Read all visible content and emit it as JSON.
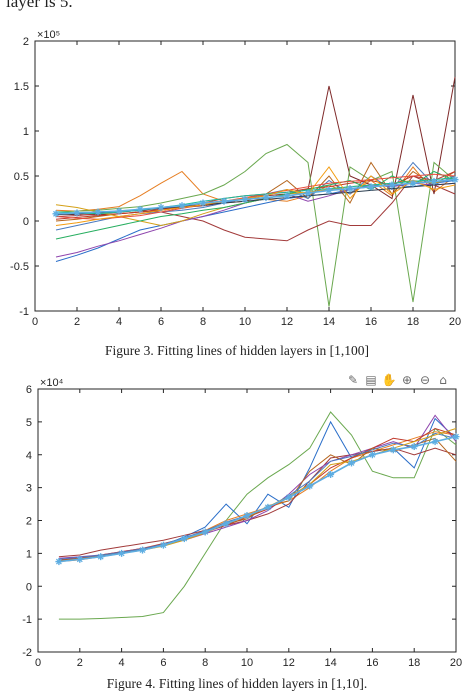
{
  "page": {
    "top_text": "layer is 5.",
    "figure3_caption": "Figure 3.   Fitting lines of hidden layers in [1,100]",
    "figure4_caption": "Figure 4.   Fitting lines of hidden layers in [1,10]."
  },
  "chart_data": [
    {
      "type": "line",
      "title": "",
      "xlabel": "",
      "ylabel": "",
      "exponent_label": "×10⁵",
      "xlim": [
        0,
        20
      ],
      "ylim": [
        -1,
        2
      ],
      "xticks": [
        0,
        2,
        4,
        6,
        8,
        10,
        12,
        14,
        16,
        18,
        20
      ],
      "yticks": [
        -1,
        -0.5,
        0,
        0.5,
        1,
        1.5,
        2
      ],
      "ytick_labels": [
        "-1",
        "-0.5",
        "0",
        "0.5",
        "1",
        "1.5",
        "2"
      ],
      "x": [
        1,
        2,
        3,
        4,
        5,
        6,
        7,
        8,
        9,
        10,
        11,
        12,
        13,
        14,
        15,
        16,
        17,
        18,
        19,
        20
      ],
      "series": [
        {
          "color": "#e67e22",
          "values": [
            0.12,
            0.11,
            0.13,
            0.16,
            0.28,
            0.42,
            0.55,
            0.3,
            0.22,
            0.25,
            0.24,
            0.22,
            0.28,
            0.4,
            0.3,
            0.45,
            0.28,
            0.6,
            0.32,
            0.5
          ]
        },
        {
          "color": "#7f2a2a",
          "values": [
            0.08,
            0.07,
            0.07,
            0.08,
            0.1,
            0.12,
            0.15,
            0.17,
            0.2,
            0.25,
            0.28,
            0.3,
            0.35,
            1.5,
            0.5,
            0.4,
            0.25,
            1.4,
            0.3,
            1.6
          ]
        },
        {
          "color": "#6aa84f",
          "values": [
            0.1,
            0.11,
            0.12,
            0.14,
            0.16,
            0.2,
            0.25,
            0.3,
            0.4,
            0.55,
            0.75,
            0.85,
            0.65,
            -0.95,
            0.6,
            0.45,
            0.55,
            -0.9,
            0.65,
            0.45
          ]
        },
        {
          "color": "#a23a3a",
          "values": [
            0.05,
            0.06,
            0.08,
            0.1,
            0.12,
            0.1,
            0.05,
            0.0,
            -0.1,
            -0.18,
            -0.2,
            -0.22,
            -0.1,
            0.0,
            -0.05,
            -0.05,
            0.2,
            0.5,
            0.4,
            0.3
          ]
        },
        {
          "color": "#2a6ec9",
          "values": [
            -0.45,
            -0.38,
            -0.3,
            -0.2,
            -0.1,
            -0.05,
            0.0,
            0.05,
            0.1,
            0.15,
            0.2,
            0.25,
            0.28,
            0.3,
            0.35,
            0.38,
            0.4,
            0.38,
            0.42,
            0.45
          ]
        },
        {
          "color": "#8e44ad",
          "values": [
            -0.4,
            -0.35,
            -0.28,
            -0.22,
            -0.15,
            -0.08,
            0.0,
            0.05,
            0.12,
            0.2,
            0.25,
            0.3,
            0.22,
            0.28,
            0.35,
            0.4,
            0.38,
            0.42,
            0.4,
            0.42
          ]
        },
        {
          "color": "#b5651d",
          "values": [
            0.0,
            0.02,
            0.05,
            0.08,
            0.1,
            0.12,
            0.15,
            0.18,
            0.2,
            0.22,
            0.3,
            0.45,
            0.25,
            0.5,
            0.2,
            0.65,
            0.3,
            0.55,
            0.4,
            0.55
          ]
        },
        {
          "color": "#4a7abf",
          "values": [
            -0.1,
            -0.05,
            0.0,
            0.05,
            0.08,
            0.1,
            0.12,
            0.15,
            0.2,
            0.25,
            0.3,
            0.35,
            0.25,
            0.45,
            0.3,
            0.5,
            0.35,
            0.65,
            0.4,
            0.5
          ]
        },
        {
          "color": "#c0392b",
          "values": [
            0.02,
            0.04,
            0.06,
            0.08,
            0.1,
            0.13,
            0.16,
            0.2,
            0.25,
            0.28,
            0.3,
            0.32,
            0.36,
            0.38,
            0.42,
            0.45,
            0.4,
            0.5,
            0.45,
            0.55
          ]
        },
        {
          "color": "#d4a017",
          "values": [
            0.18,
            0.15,
            0.1,
            0.05,
            0.0,
            -0.05,
            0.0,
            0.08,
            0.15,
            0.2,
            0.25,
            0.3,
            0.32,
            0.35,
            0.38,
            0.4,
            0.42,
            0.45,
            0.42,
            0.48
          ]
        },
        {
          "color": "#27ae60",
          "values": [
            -0.2,
            -0.15,
            -0.1,
            -0.05,
            0.0,
            0.05,
            0.08,
            0.12,
            0.15,
            0.2,
            0.25,
            0.3,
            0.35,
            0.4,
            0.45,
            0.35,
            0.5,
            0.4,
            0.55,
            0.45
          ]
        },
        {
          "color": "#e74c3c",
          "values": [
            0.05,
            0.03,
            0.02,
            0.04,
            0.06,
            0.1,
            0.14,
            0.18,
            0.22,
            0.26,
            0.3,
            0.34,
            0.38,
            0.42,
            0.44,
            0.46,
            0.48,
            0.5,
            0.52,
            0.5
          ]
        },
        {
          "color": "#2c3e50",
          "values": [
            0.07,
            0.08,
            0.09,
            0.1,
            0.12,
            0.14,
            0.16,
            0.18,
            0.2,
            0.22,
            0.24,
            0.26,
            0.28,
            0.3,
            0.32,
            0.34,
            0.36,
            0.38,
            0.4,
            0.42
          ]
        },
        {
          "color": "#1abc9c",
          "values": [
            0.1,
            0.09,
            0.08,
            0.1,
            0.12,
            0.15,
            0.18,
            0.22,
            0.25,
            0.28,
            0.3,
            0.32,
            0.34,
            0.36,
            0.38,
            0.4,
            0.42,
            0.44,
            0.46,
            0.48
          ]
        },
        {
          "color": "#f39c12",
          "values": [
            -0.05,
            -0.02,
            0.02,
            0.05,
            0.08,
            0.12,
            0.15,
            0.18,
            0.22,
            0.25,
            0.28,
            0.35,
            0.3,
            0.6,
            0.25,
            0.5,
            0.3,
            0.45,
            0.35,
            0.4
          ]
        },
        {
          "color": "#5dade2",
          "values": [
            0.08,
            0.09,
            0.1,
            0.11,
            0.13,
            0.15,
            0.17,
            0.2,
            0.22,
            0.24,
            0.26,
            0.28,
            0.31,
            0.34,
            0.36,
            0.38,
            0.4,
            0.42,
            0.44,
            0.46
          ],
          "markers": true
        }
      ]
    },
    {
      "type": "line",
      "title": "",
      "xlabel": "",
      "ylabel": "",
      "exponent_label": "×10⁴",
      "xlim": [
        0,
        20
      ],
      "ylim": [
        -2,
        6
      ],
      "xticks": [
        0,
        2,
        4,
        6,
        8,
        10,
        12,
        14,
        16,
        18,
        20
      ],
      "yticks": [
        -2,
        -1,
        0,
        1,
        2,
        3,
        4,
        5,
        6
      ],
      "ytick_labels": [
        "-2",
        "-1",
        "0",
        "1",
        "2",
        "3",
        "4",
        "5",
        "6"
      ],
      "x": [
        1,
        2,
        3,
        4,
        5,
        6,
        7,
        8,
        9,
        10,
        11,
        12,
        13,
        14,
        15,
        16,
        17,
        18,
        19,
        20
      ],
      "series": [
        {
          "color": "#6aa84f",
          "values": [
            -1.0,
            -1.0,
            -0.98,
            -0.95,
            -0.92,
            -0.8,
            0.0,
            1.0,
            2.0,
            2.8,
            3.3,
            3.7,
            4.2,
            5.3,
            4.6,
            3.5,
            3.3,
            3.3,
            4.8,
            4.3
          ]
        },
        {
          "color": "#2a6ec9",
          "values": [
            0.8,
            0.85,
            0.9,
            1.0,
            1.1,
            1.25,
            1.5,
            1.8,
            2.5,
            1.9,
            2.8,
            2.4,
            3.6,
            5.0,
            3.9,
            4.1,
            4.2,
            3.6,
            5.1,
            4.5
          ]
        },
        {
          "color": "#e67e22",
          "values": [
            0.75,
            0.8,
            0.9,
            1.0,
            1.1,
            1.25,
            1.45,
            1.7,
            2.0,
            2.2,
            2.4,
            2.6,
            3.0,
            3.5,
            3.9,
            4.1,
            4.3,
            4.5,
            4.7,
            4.6
          ]
        },
        {
          "color": "#a23a3a",
          "values": [
            0.9,
            0.95,
            1.1,
            1.2,
            1.3,
            1.4,
            1.55,
            1.7,
            1.85,
            2.0,
            2.2,
            2.5,
            3.2,
            3.9,
            4.0,
            4.1,
            4.2,
            4.0,
            4.2,
            4.0
          ]
        },
        {
          "color": "#8e44ad",
          "values": [
            0.85,
            0.9,
            0.95,
            1.05,
            1.15,
            1.25,
            1.4,
            1.6,
            1.8,
            2.0,
            2.3,
            2.8,
            3.4,
            3.8,
            4.0,
            4.2,
            4.4,
            4.2,
            5.2,
            4.4
          ]
        },
        {
          "color": "#c0392b",
          "values": [
            0.8,
            0.85,
            0.95,
            1.05,
            1.15,
            1.3,
            1.45,
            1.65,
            1.85,
            2.1,
            2.35,
            2.7,
            3.1,
            3.6,
            3.9,
            4.2,
            4.5,
            4.4,
            4.8,
            4.6
          ]
        },
        {
          "color": "#b5651d",
          "values": [
            0.78,
            0.84,
            0.92,
            1.02,
            1.12,
            1.24,
            1.42,
            1.62,
            1.9,
            2.05,
            2.45,
            2.6,
            3.5,
            4.0,
            3.7,
            4.2,
            4.1,
            4.3,
            4.5,
            3.8
          ]
        },
        {
          "color": "#4a7abf",
          "values": [
            0.82,
            0.88,
            0.94,
            1.04,
            1.14,
            1.28,
            1.48,
            1.68,
            1.95,
            2.15,
            2.4,
            2.75,
            3.2,
            3.8,
            3.95,
            4.15,
            4.35,
            4.25,
            4.65,
            4.5
          ]
        },
        {
          "color": "#d4a017",
          "values": [
            0.76,
            0.82,
            0.9,
            1.0,
            1.1,
            1.22,
            1.4,
            1.62,
            1.92,
            2.12,
            2.42,
            2.72,
            3.1,
            3.7,
            3.8,
            4.0,
            4.2,
            4.4,
            4.6,
            4.8
          ]
        },
        {
          "color": "#5dade2",
          "values": [
            0.75,
            0.82,
            0.9,
            1.0,
            1.1,
            1.25,
            1.45,
            1.65,
            1.9,
            2.15,
            2.4,
            2.7,
            3.05,
            3.4,
            3.75,
            4.0,
            4.15,
            4.25,
            4.4,
            4.55
          ],
          "markers": true
        }
      ]
    }
  ]
}
